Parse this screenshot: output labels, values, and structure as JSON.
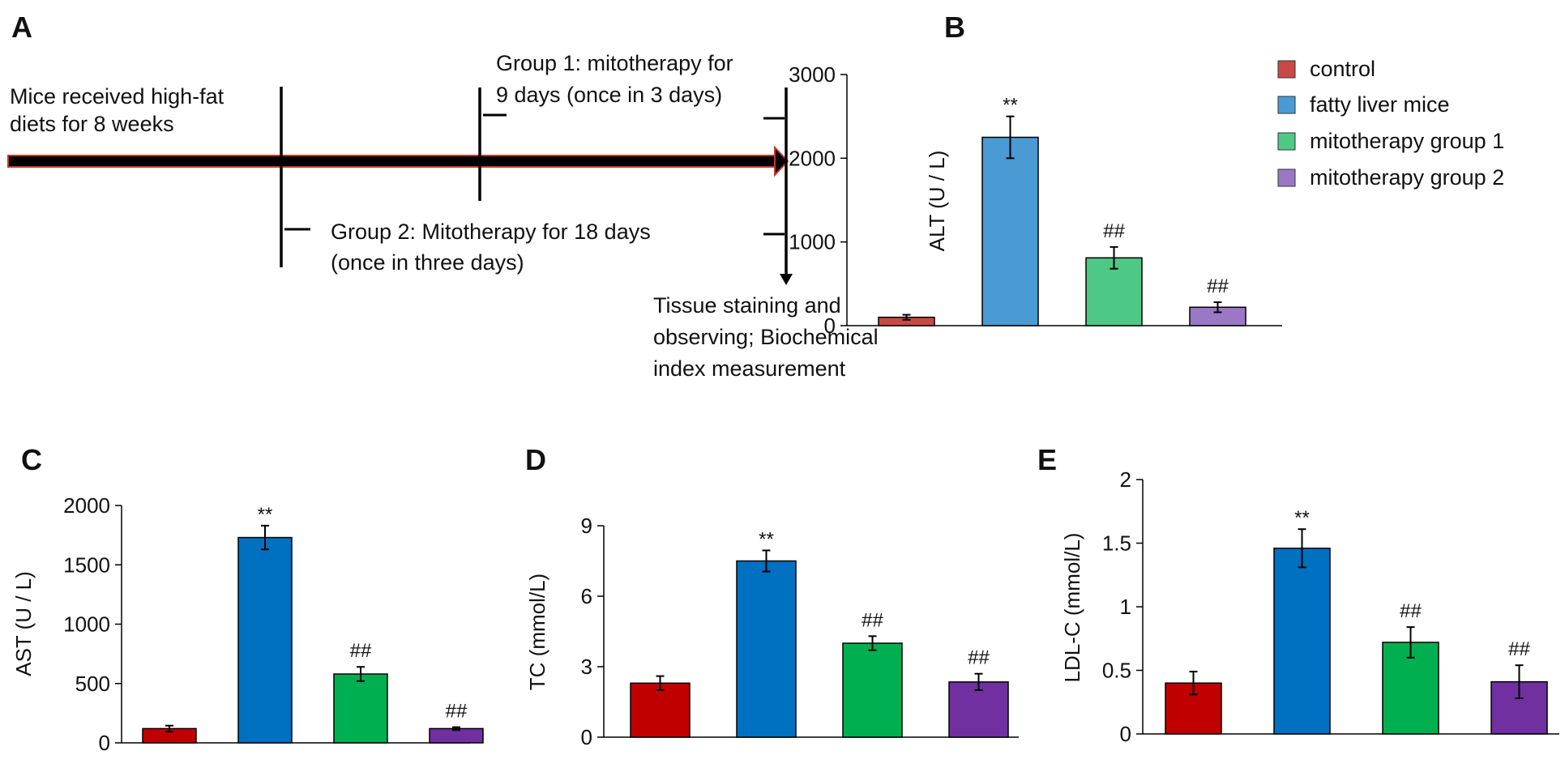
{
  "panels": {
    "a": {
      "letter": "A",
      "start_text": [
        "Mice received high-fat",
        "diets for 8 weeks"
      ],
      "group1_text": [
        "Group 1: mitotherapy for",
        "9 days (once in 3 days)"
      ],
      "group2_text": [
        "Group 2: Mitotherapy for 18 days",
        "(once in three days)"
      ],
      "end_text": [
        "Tissue staining and",
        "observing; Biochemical",
        "index measurement"
      ],
      "arrow_color": "#8b0000"
    },
    "b": {
      "letter": "B"
    },
    "c": {
      "letter": "C"
    },
    "d": {
      "letter": "D"
    },
    "e": {
      "letter": "E"
    }
  },
  "legend": [
    {
      "label": "control",
      "color": "#c0392b"
    },
    {
      "label": "fatty liver mice",
      "color": "#4a90d0"
    },
    {
      "label": "mitotherapy group  1",
      "color": "#4ec07a"
    },
    {
      "label": "mitotherapy group  2",
      "color": "#9b6fc0"
    }
  ],
  "chart_data": [
    {
      "panel": "B",
      "type": "bar",
      "categories": [
        "control",
        "fatty liver mice",
        "mitotherapy group  1",
        "mitotherapy group  2"
      ],
      "values": [
        100,
        2250,
        810,
        220
      ],
      "errors": [
        30,
        250,
        130,
        60
      ],
      "significance": [
        "",
        "**",
        "##",
        "##"
      ],
      "colors": [
        "#c94a44",
        "#4a9ad4",
        "#4ec885",
        "#9b78c6"
      ],
      "ylabel": "ALT (U / L)",
      "ylim": [
        0,
        3000
      ],
      "yticks": [
        "0",
        "1000",
        "2000",
        "3000"
      ],
      "yticks_values": [
        0,
        1000,
        2000,
        3000
      ]
    },
    {
      "panel": "C",
      "type": "bar",
      "categories": [
        "control",
        "fatty liver mice",
        "mitotherapy group  1",
        "mitotherapy group  2"
      ],
      "values": [
        120,
        1730,
        580,
        120
      ],
      "errors": [
        25,
        100,
        60,
        12
      ],
      "significance": [
        "",
        "**",
        "##",
        "##"
      ],
      "colors": [
        "#c00000",
        "#0070c0",
        "#00b050",
        "#7030a0"
      ],
      "ylabel": "AST (U / L)",
      "ylim": [
        0,
        2000
      ],
      "yticks": [
        "0",
        "500",
        "1000",
        "1500",
        "2000"
      ],
      "yticks_values": [
        0,
        500,
        1000,
        1500,
        2000
      ]
    },
    {
      "panel": "D",
      "type": "bar",
      "categories": [
        "control",
        "fatty liver mice",
        "mitotherapy group  1",
        "mitotherapy group  2"
      ],
      "values": [
        2.3,
        7.5,
        4.0,
        2.35
      ],
      "errors": [
        0.3,
        0.45,
        0.3,
        0.35
      ],
      "significance": [
        "",
        "**",
        "##",
        "##"
      ],
      "colors": [
        "#c00000",
        "#0070c0",
        "#00b050",
        "#7030a0"
      ],
      "ylabel": "TC (mmol/L)",
      "ylim": [
        0,
        9
      ],
      "yticks": [
        "0",
        "3",
        "6",
        "9"
      ],
      "yticks_values": [
        0,
        3,
        6,
        9
      ]
    },
    {
      "panel": "E",
      "type": "bar",
      "categories": [
        "control",
        "fatty liver mice",
        "mitotherapy group  1",
        "mitotherapy group  2"
      ],
      "values": [
        0.4,
        1.46,
        0.72,
        0.41
      ],
      "errors": [
        0.09,
        0.15,
        0.12,
        0.13
      ],
      "significance": [
        "",
        "**",
        "##",
        "##"
      ],
      "colors": [
        "#c00000",
        "#0070c0",
        "#00b050",
        "#7030a0"
      ],
      "ylabel": "LDL-C (mmol/L)",
      "ylim": [
        0,
        2
      ],
      "yticks": [
        "0",
        "0.5",
        "1",
        "1.5",
        "2"
      ],
      "yticks_values": [
        0,
        0.5,
        1,
        1.5,
        2
      ]
    }
  ]
}
